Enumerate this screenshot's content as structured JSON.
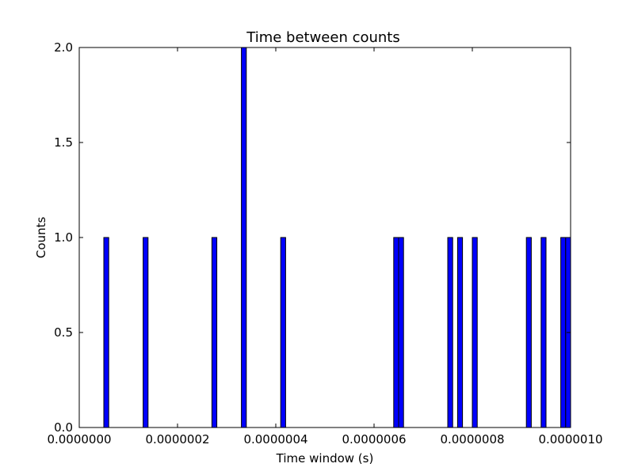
{
  "chart_data": {
    "type": "bar",
    "title": "Time between counts",
    "xlabel": "Time window (s)",
    "ylabel": "Counts",
    "xlim": [
      0,
      1e-06
    ],
    "ylim": [
      0,
      2.0
    ],
    "x_ticks": [
      {
        "value": 0,
        "label": "0.0000000"
      },
      {
        "value": 2e-07,
        "label": "0.0000002"
      },
      {
        "value": 4e-07,
        "label": "0.0000004"
      },
      {
        "value": 6e-07,
        "label": "0.0000006"
      },
      {
        "value": 8e-07,
        "label": "0.0000008"
      },
      {
        "value": 1e-06,
        "label": "0.0000010"
      }
    ],
    "y_ticks": [
      {
        "value": 0.0,
        "label": "0.0"
      },
      {
        "value": 0.5,
        "label": "0.5"
      },
      {
        "value": 1.0,
        "label": "1.0"
      },
      {
        "value": 1.5,
        "label": "1.5"
      },
      {
        "value": 2.0,
        "label": "2.0"
      }
    ],
    "bin_width": 1e-08,
    "bars": [
      {
        "x": 5e-08,
        "count": 1
      },
      {
        "x": 1.3e-07,
        "count": 1
      },
      {
        "x": 2.7e-07,
        "count": 1
      },
      {
        "x": 3.3e-07,
        "count": 2
      },
      {
        "x": 4.1e-07,
        "count": 1
      },
      {
        "x": 6.4e-07,
        "count": 1
      },
      {
        "x": 6.5e-07,
        "count": 1
      },
      {
        "x": 7.5e-07,
        "count": 1
      },
      {
        "x": 7.7e-07,
        "count": 1
      },
      {
        "x": 8e-07,
        "count": 1
      },
      {
        "x": 9.1e-07,
        "count": 1
      },
      {
        "x": 9.4e-07,
        "count": 1
      },
      {
        "x": 9.8e-07,
        "count": 1
      },
      {
        "x": 9.9e-07,
        "count": 1
      }
    ],
    "bar_color": "#0000ff",
    "edge_color": "#000000",
    "grid": false
  }
}
